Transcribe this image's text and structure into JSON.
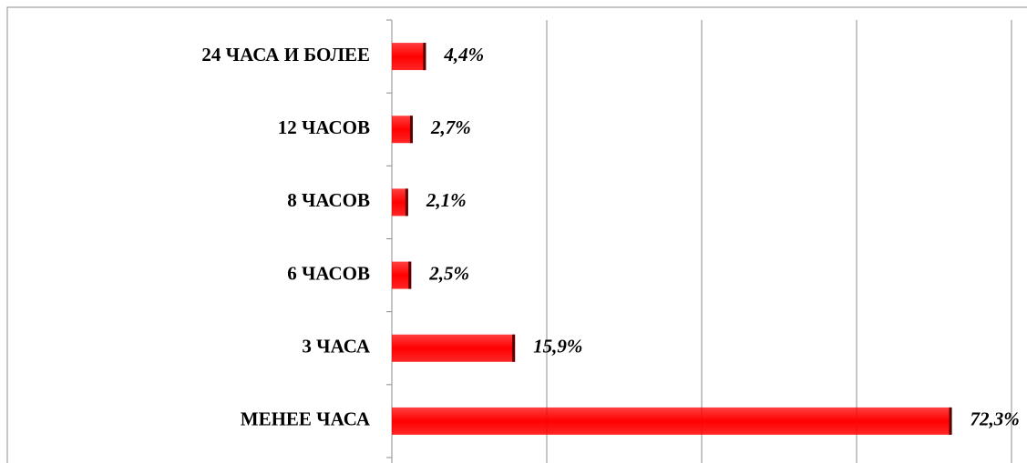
{
  "chart_data": {
    "type": "bar",
    "orientation": "horizontal",
    "categories": [
      "24 ЧАСА И БОЛЕЕ",
      "12 ЧАСОВ",
      "8 ЧАСОВ",
      "6 ЧАСОВ",
      "3 ЧАСА",
      "МЕНЕЕ ЧАСА"
    ],
    "values": [
      4.4,
      2.7,
      2.1,
      2.5,
      15.9,
      72.3
    ],
    "value_labels": [
      "4,4%",
      "2,7%",
      "2,1%",
      "2,5%",
      "15,9%",
      "72,3%"
    ],
    "color": "#ff0000",
    "xlim": [
      0,
      80
    ],
    "xticks": [
      0,
      20,
      40,
      60,
      80
    ],
    "grid": true
  }
}
